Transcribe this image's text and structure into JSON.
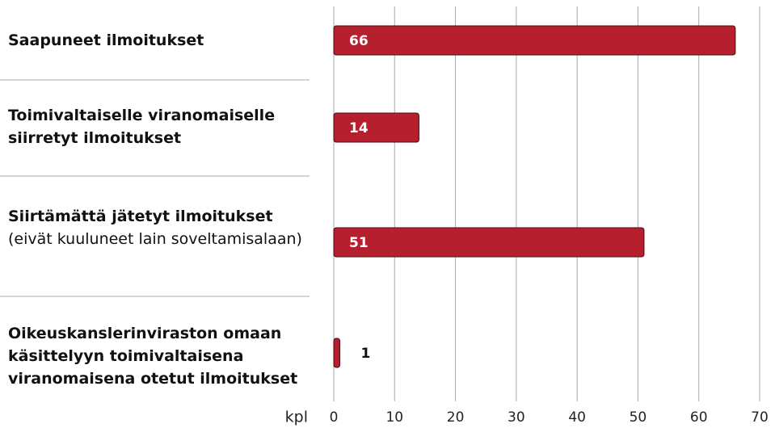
{
  "chart_data": {
    "type": "barh",
    "categories": [
      "Saapuneet ilmoitukset",
      "Toimivaltaiselle viranomaiselle siirretyt ilmoitukset",
      "Siirtämättä jätetyt ilmoitukset",
      "Oikeuskanslerinviraston omaan käsittelyyn toimivaltaisena viranomaisena otetut ilmoitukset"
    ],
    "category_notes": [
      null,
      null,
      "(eivät kuuluneet lain soveltamis­alaan)",
      null
    ],
    "values": [
      66,
      14,
      51,
      1
    ],
    "color": "#b51f2e",
    "xlabel": "kpl",
    "xlim": [
      0,
      70
    ],
    "xticks": [
      0,
      10,
      20,
      30,
      40,
      50,
      60,
      70
    ],
    "grid": true
  }
}
